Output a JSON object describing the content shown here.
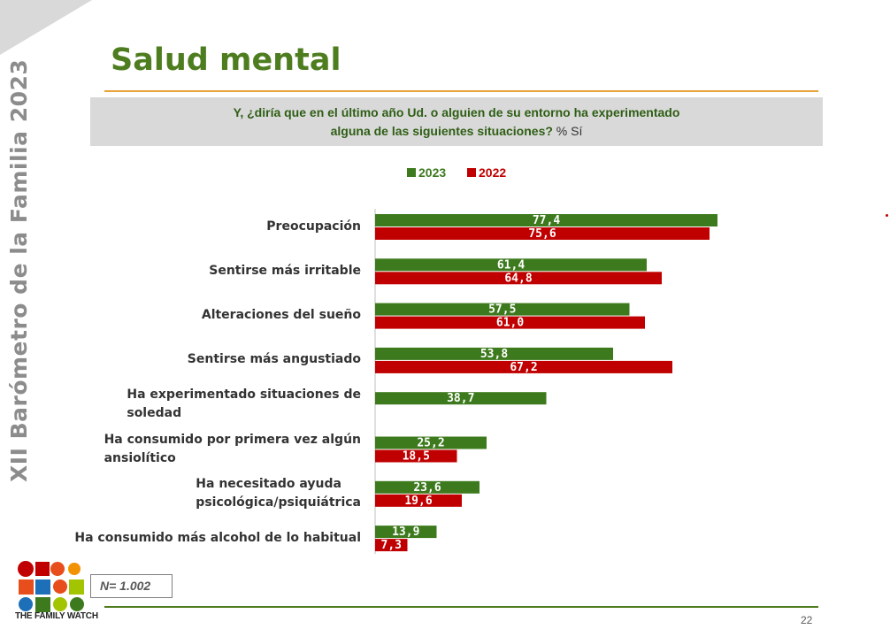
{
  "side_title": "XII  Barómetro de la Familia  2023",
  "page_title": "Salud mental",
  "question": {
    "line1": "Y, ¿diría que en el último año Ud. o alguien de su entorno ha experimentado",
    "line2": "alguna de las siguientes situaciones?",
    "suffix": " % Sí"
  },
  "sample_size": "N= 1.002",
  "page_number": "22",
  "logo_text": "THE FAMILY WATCH",
  "chart_data": {
    "type": "bar",
    "orientation": "horizontal",
    "categories": [
      [
        "Preocupación"
      ],
      [
        "Sentirse más irritable"
      ],
      [
        "Alteraciones del sueño"
      ],
      [
        "Sentirse más angustiado"
      ],
      [
        "Ha experimentado situaciones de",
        "soledad"
      ],
      [
        "Ha consumido por primera vez algún",
        "ansiolítico"
      ],
      [
        "Ha necesitado ayuda",
        "psicológica/psiquiátrica"
      ],
      [
        "Ha consumido más alcohol de lo habitual"
      ]
    ],
    "series": [
      {
        "name": "2023",
        "color": "#3d7a1d",
        "values": [
          77.4,
          61.4,
          57.5,
          53.8,
          38.7,
          25.2,
          23.6,
          13.9
        ],
        "labels": [
          "77,4",
          "61,4",
          "57,5",
          "53,8",
          "38,7",
          "25,2",
          "23,6",
          "13,9"
        ]
      },
      {
        "name": "2022",
        "color": "#c00000",
        "values": [
          75.6,
          64.8,
          61.0,
          67.2,
          null,
          18.5,
          19.6,
          7.3
        ],
        "labels": [
          "75,6",
          "64,8",
          "61,0",
          "67,2",
          "",
          "18,5",
          "19,6",
          "7,3"
        ]
      }
    ],
    "xlim": [
      0,
      100
    ],
    "legend": "top-center",
    "grid": false
  }
}
